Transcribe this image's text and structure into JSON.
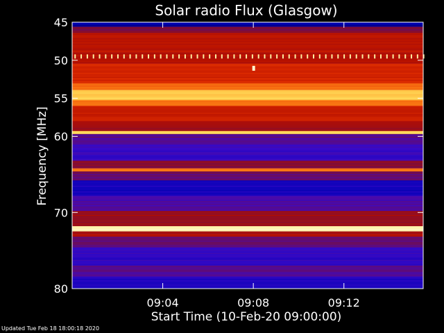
{
  "footer": {
    "updated": "Updated Tue Feb 18 18:00:18 2020"
  },
  "colors": {
    "background": "#000000",
    "text": "#ffffff",
    "colormap": [
      "#000010",
      "#0000b4",
      "#3c0ac8",
      "#7a0d3c",
      "#b40f00",
      "#e63200",
      "#ff8c19",
      "#ffdc5a",
      "#fffad2"
    ]
  },
  "chart_data": {
    "type": "heatmap",
    "title": "Solar radio Flux (Glasgow)",
    "xlabel": "Start Time (10-Feb-20 09:00:00)",
    "ylabel": "Frequency [MHz]",
    "x_unit": "minutes after 09:00:00",
    "xlim": [
      0,
      15.5
    ],
    "ylim": [
      45,
      80
    ],
    "y_inverted": true,
    "x_ticks": [
      {
        "value": 4,
        "label": "09:04"
      },
      {
        "value": 8,
        "label": "09:08"
      },
      {
        "value": 12,
        "label": "09:12"
      }
    ],
    "y_ticks": [
      {
        "value": 45,
        "label": "45"
      },
      {
        "value": 50,
        "label": "50"
      },
      {
        "value": 55,
        "label": "55"
      },
      {
        "value": 60,
        "label": "60"
      },
      {
        "value": 70,
        "label": "70"
      },
      {
        "value": 80,
        "label": "80"
      }
    ],
    "bands": [
      {
        "from": 45,
        "to": 45.6,
        "intensity": 0.12
      },
      {
        "from": 45.6,
        "to": 46.4,
        "intensity": 0.38
      },
      {
        "from": 46.4,
        "to": 49.0,
        "intensity": 0.52
      },
      {
        "from": 49.0,
        "to": 50.4,
        "intensity": 0.5
      },
      {
        "from": 50.4,
        "to": 53.0,
        "intensity": 0.58
      },
      {
        "from": 53.0,
        "to": 53.9,
        "intensity": 0.7
      },
      {
        "from": 53.9,
        "to": 55.2,
        "intensity": 0.86
      },
      {
        "from": 55.2,
        "to": 56.0,
        "intensity": 0.72
      },
      {
        "from": 56.0,
        "to": 58.0,
        "intensity": 0.55
      },
      {
        "from": 58.0,
        "to": 59.3,
        "intensity": 0.46
      },
      {
        "from": 59.3,
        "to": 59.7,
        "intensity": 0.88
      },
      {
        "from": 59.7,
        "to": 61.0,
        "intensity": 0.3
      },
      {
        "from": 61.0,
        "to": 63.2,
        "intensity": 0.24
      },
      {
        "from": 63.2,
        "to": 64.2,
        "intensity": 0.4
      },
      {
        "from": 64.2,
        "to": 64.6,
        "intensity": 0.74
      },
      {
        "from": 64.6,
        "to": 65.8,
        "intensity": 0.34
      },
      {
        "from": 65.8,
        "to": 67.8,
        "intensity": 0.18
      },
      {
        "from": 67.8,
        "to": 69.8,
        "intensity": 0.28
      },
      {
        "from": 69.8,
        "to": 71.8,
        "intensity": 0.45
      },
      {
        "from": 71.8,
        "to": 72.5,
        "intensity": 0.96
      },
      {
        "from": 72.5,
        "to": 73.2,
        "intensity": 0.48
      },
      {
        "from": 73.2,
        "to": 74.6,
        "intensity": 0.32
      },
      {
        "from": 74.6,
        "to": 77.0,
        "intensity": 0.22
      },
      {
        "from": 77.0,
        "to": 78.4,
        "intensity": 0.3
      },
      {
        "from": 78.4,
        "to": 80.0,
        "intensity": 0.2
      }
    ],
    "pulse_train": {
      "frequency": 49.5,
      "x_start": 0.1,
      "x_end": 15.5,
      "spacing": 0.27,
      "intensity": 0.95
    },
    "bursts": [
      {
        "x": 8.0,
        "frequency": 51.1,
        "intensity": 1.0
      }
    ],
    "grid": false,
    "legend": "none"
  }
}
